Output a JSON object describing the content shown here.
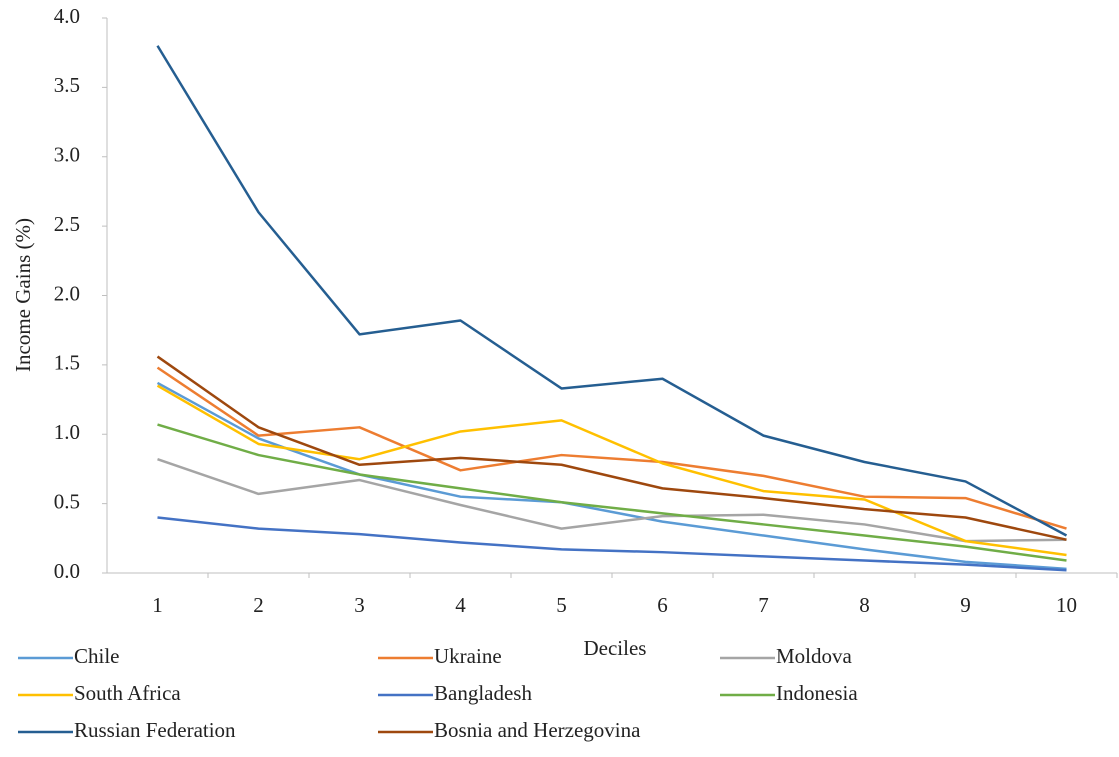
{
  "chart_data": {
    "type": "line",
    "x_label": "Deciles",
    "y_label": "Income Gains (%)",
    "categories": [
      1,
      2,
      3,
      4,
      5,
      6,
      7,
      8,
      9,
      10
    ],
    "ylim": [
      0,
      4
    ],
    "yticks": [
      {
        "value": 0,
        "label": "0.0"
      },
      0.5,
      {
        "value": 1,
        "label": "1.0"
      },
      1.5,
      {
        "value": 2,
        "label": "2.0"
      },
      2.5,
      {
        "value": 3,
        "label": "3.0"
      },
      3.5,
      {
        "value": 4,
        "label": "4.0"
      }
    ],
    "grid": false,
    "legend": "bottom",
    "series": [
      {
        "name": "Chile",
        "color": "#5b9bd5",
        "values": [
          1.37,
          0.97,
          0.71,
          0.55,
          0.51,
          0.37,
          0.27,
          0.17,
          0.08,
          0.03
        ]
      },
      {
        "name": "Ukraine",
        "color": "#ed7d31",
        "values": [
          1.48,
          0.99,
          1.05,
          0.74,
          0.85,
          0.8,
          0.7,
          0.55,
          0.54,
          0.32
        ]
      },
      {
        "name": "Moldova",
        "color": "#a5a5a5",
        "values": [
          0.82,
          0.57,
          0.67,
          0.49,
          0.32,
          0.41,
          0.42,
          0.35,
          0.23,
          0.24
        ]
      },
      {
        "name": "South Africa",
        "color": "#ffc000",
        "values": [
          1.35,
          0.93,
          0.82,
          1.02,
          1.1,
          0.79,
          0.59,
          0.53,
          0.23,
          0.13
        ]
      },
      {
        "name": "Bangladesh",
        "color": "#4472c4",
        "values": [
          0.4,
          0.32,
          0.28,
          0.22,
          0.17,
          0.15,
          0.12,
          0.09,
          0.06,
          0.02
        ]
      },
      {
        "name": "Indonesia",
        "color": "#70ad47",
        "values": [
          1.07,
          0.85,
          0.71,
          0.61,
          0.51,
          0.43,
          0.35,
          0.27,
          0.19,
          0.09
        ]
      },
      {
        "name": "Russian Federation",
        "color": "#255e91",
        "values": [
          3.8,
          2.6,
          1.72,
          1.82,
          1.33,
          1.4,
          0.99,
          0.8,
          0.66,
          0.27
        ]
      },
      {
        "name": "Bosnia and Herzegovina",
        "color": "#9e480e",
        "values": [
          1.56,
          1.05,
          0.78,
          0.83,
          0.78,
          0.61,
          0.54,
          0.46,
          0.4,
          0.24
        ]
      }
    ]
  }
}
